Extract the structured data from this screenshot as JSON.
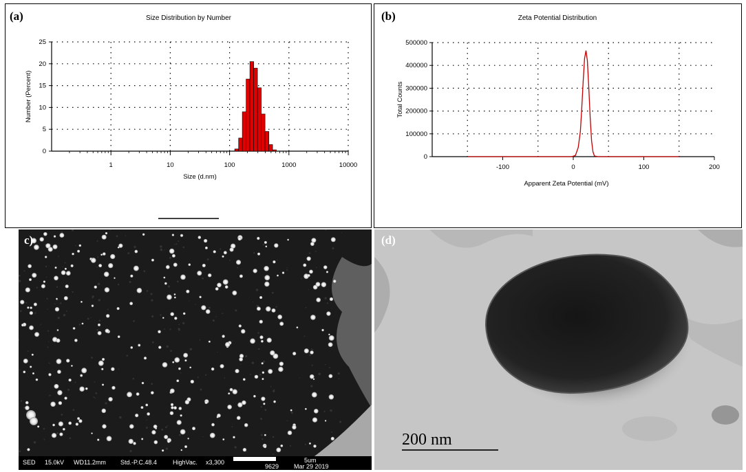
{
  "panels": {
    "a": {
      "letter": "(a)"
    },
    "b": {
      "letter": "(b)"
    },
    "c": {
      "letter": "c)"
    },
    "d": {
      "letter": "(d)"
    }
  },
  "chart_data": [
    {
      "type": "bar",
      "title": "Size Distribution by Number",
      "xlabel": "Size (d.nm)",
      "ylabel": "Number (Percent)",
      "xscale": "log",
      "xlim": [
        0.1,
        10000
      ],
      "ylim": [
        0,
        25
      ],
      "xticks": [
        "1",
        "10",
        "100",
        "1000",
        "10000"
      ],
      "yticks": [
        "0",
        "5",
        "10",
        "15",
        "20",
        "25"
      ],
      "grid": true,
      "bar_color": "#e00000",
      "bins": [
        {
          "x0": 122,
          "x1": 142,
          "y": 0.5
        },
        {
          "x0": 142,
          "x1": 164,
          "y": 3.0
        },
        {
          "x0": 164,
          "x1": 190,
          "y": 9.0
        },
        {
          "x0": 190,
          "x1": 220,
          "y": 16.5
        },
        {
          "x0": 220,
          "x1": 255,
          "y": 20.5
        },
        {
          "x0": 255,
          "x1": 295,
          "y": 19.0
        },
        {
          "x0": 295,
          "x1": 342,
          "y": 14.5
        },
        {
          "x0": 342,
          "x1": 396,
          "y": 8.5
        },
        {
          "x0": 396,
          "x1": 459,
          "y": 4.5
        },
        {
          "x0": 459,
          "x1": 531,
          "y": 1.5
        },
        {
          "x0": 531,
          "x1": 615,
          "y": 0.3
        }
      ]
    },
    {
      "type": "line",
      "title": "Zeta Potential Distribution",
      "xlabel": "Apparent Zeta Potential (mV)",
      "ylabel": "Total Counts",
      "xlim": [
        -200,
        200
      ],
      "ylim": [
        0,
        500000
      ],
      "xticks": [
        "-100",
        "0",
        "100",
        "200"
      ],
      "yticks": [
        "0",
        "100000",
        "200000",
        "300000",
        "400000",
        "500000"
      ],
      "grid": true,
      "line_color": "#c00000",
      "x": [
        -150,
        -10,
        -2,
        3,
        7,
        10,
        12,
        14,
        16,
        18,
        20,
        22,
        24,
        26,
        28,
        30,
        35,
        40,
        150
      ],
      "y": [
        0,
        0,
        0,
        5000,
        40000,
        110000,
        210000,
        330000,
        430000,
        465000,
        420000,
        300000,
        170000,
        70000,
        20000,
        3000,
        0,
        0,
        0
      ]
    }
  ],
  "sem": {
    "info_bar": [
      "SED",
      "15.0kV",
      "WD11.2mm",
      "Std.-P.C.48.4",
      "HighVac.",
      "x3,300",
      "5um",
      "9629",
      "Mar 29 2019"
    ]
  },
  "tem": {
    "scale_label": "200 nm"
  }
}
